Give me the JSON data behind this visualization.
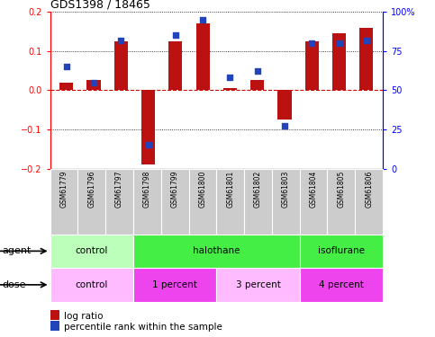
{
  "title": "GDS1398 / 18465",
  "samples": [
    "GSM61779",
    "GSM61796",
    "GSM61797",
    "GSM61798",
    "GSM61799",
    "GSM61800",
    "GSM61801",
    "GSM61802",
    "GSM61803",
    "GSM61804",
    "GSM61805",
    "GSM61806"
  ],
  "log_ratio": [
    0.02,
    0.025,
    0.125,
    -0.19,
    0.125,
    0.17,
    0.005,
    0.025,
    -0.075,
    0.125,
    0.145,
    0.16
  ],
  "percentile_rank": [
    65,
    55,
    82,
    15,
    85,
    95,
    58,
    62,
    27,
    80,
    80,
    82
  ],
  "ylim": [
    -0.2,
    0.2
  ],
  "yticks_left": [
    -0.2,
    -0.1,
    0.0,
    0.1,
    0.2
  ],
  "yticks_right": [
    0,
    25,
    50,
    75,
    100
  ],
  "ytick_labels_right": [
    "0",
    "25",
    "50",
    "75",
    "100%"
  ],
  "bar_color": "#bb1111",
  "dot_color": "#2244bb",
  "agent_groups": [
    {
      "label": "control",
      "start": 0,
      "end": 3,
      "color": "#bbffbb"
    },
    {
      "label": "halothane",
      "start": 3,
      "end": 9,
      "color": "#44ee44"
    },
    {
      "label": "isoflurane",
      "start": 9,
      "end": 12,
      "color": "#44ee44"
    }
  ],
  "dose_groups": [
    {
      "label": "control",
      "start": 0,
      "end": 3,
      "color": "#ffbbff"
    },
    {
      "label": "1 percent",
      "start": 3,
      "end": 6,
      "color": "#ee44ee"
    },
    {
      "label": "3 percent",
      "start": 6,
      "end": 9,
      "color": "#ffbbff"
    },
    {
      "label": "4 percent",
      "start": 9,
      "end": 12,
      "color": "#ee44ee"
    }
  ],
  "legend_log_ratio": "log ratio",
  "legend_percentile": "percentile rank within the sample",
  "agent_label": "agent",
  "dose_label": "dose",
  "bg_color": "#ffffff",
  "label_box_color": "#cccccc",
  "zero_line_color": "#cc0000",
  "bar_width": 0.5
}
